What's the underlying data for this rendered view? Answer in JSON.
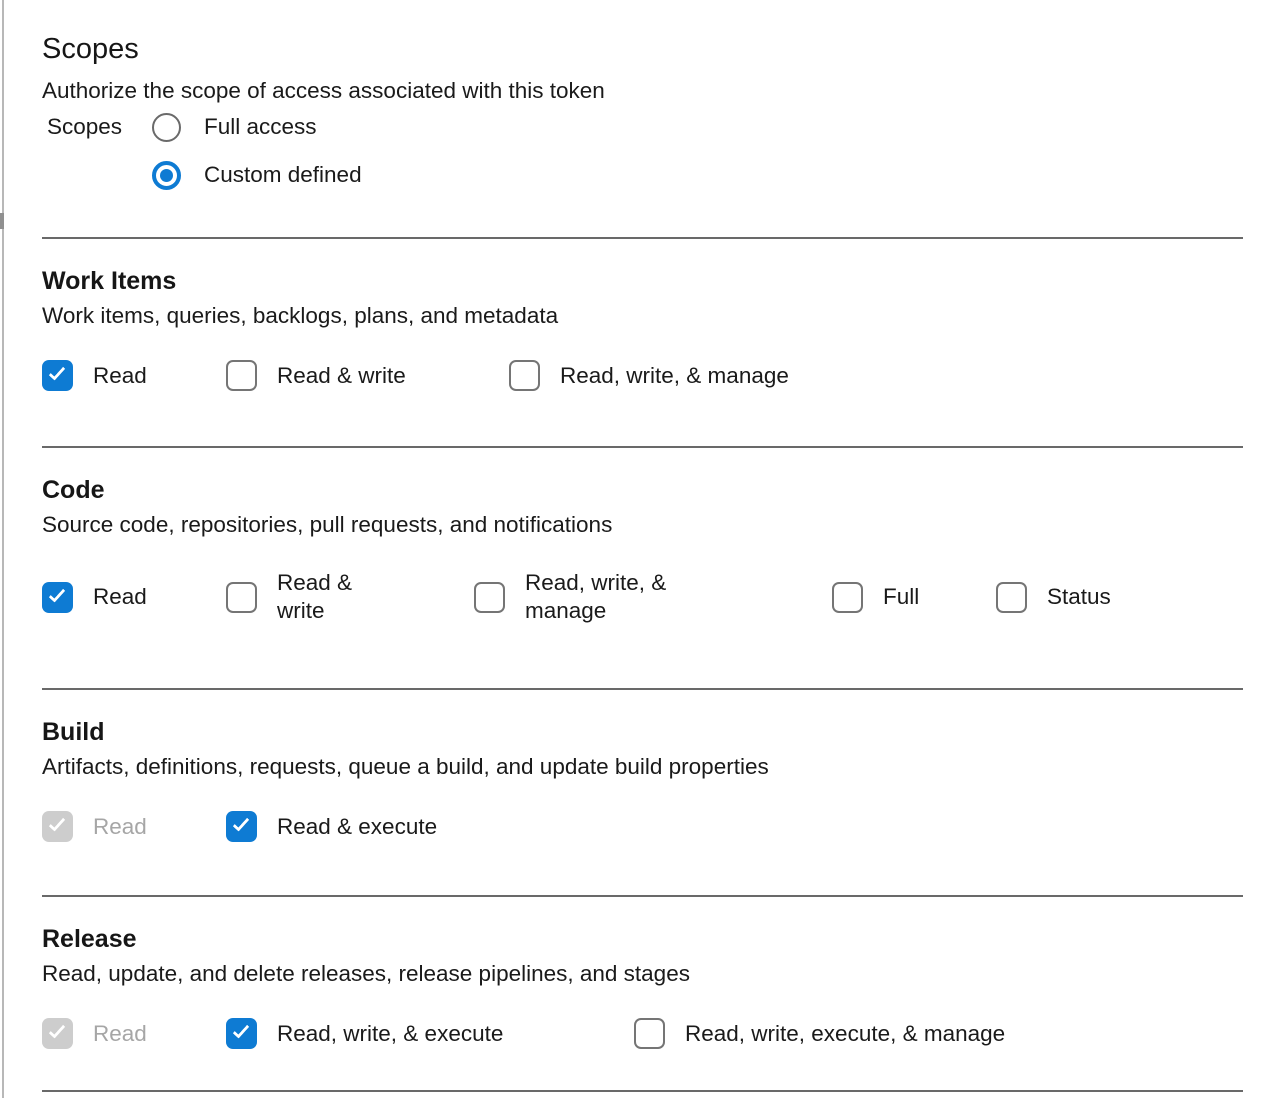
{
  "header": {
    "title": "Scopes",
    "subtitle": "Authorize the scope of access associated with this token",
    "field_label": "Scopes",
    "radios": [
      {
        "label": "Full access",
        "selected": false
      },
      {
        "label": "Custom defined",
        "selected": true
      }
    ]
  },
  "colors": {
    "accent": "#0e7bd3",
    "divider": "#696969",
    "disabled_fill": "#cdcdcd",
    "disabled_text": "#a6a6a6"
  },
  "icons": {
    "checkbox_check": "check-icon",
    "radio_dot": "radio-dot-icon"
  },
  "sections": [
    {
      "title": "Work Items",
      "description": "Work items, queries, backlogs, plans, and metadata",
      "options": [
        {
          "label": "Read",
          "state": "checked"
        },
        {
          "label": "Read & write",
          "state": "unchecked"
        },
        {
          "label": "Read, write, & manage",
          "state": "unchecked"
        }
      ]
    },
    {
      "title": "Code",
      "description": "Source code, repositories, pull requests, and notifications",
      "options": [
        {
          "label": "Read",
          "state": "checked"
        },
        {
          "label": "Read & write",
          "state": "unchecked"
        },
        {
          "label": "Read, write, & manage",
          "state": "unchecked"
        },
        {
          "label": "Full",
          "state": "unchecked"
        },
        {
          "label": "Status",
          "state": "unchecked"
        }
      ]
    },
    {
      "title": "Build",
      "description": "Artifacts, definitions, requests, queue a build, and update build properties",
      "options": [
        {
          "label": "Read",
          "state": "disabled-checked"
        },
        {
          "label": "Read & execute",
          "state": "checked"
        }
      ]
    },
    {
      "title": "Release",
      "description": "Read, update, and delete releases, release pipelines, and stages",
      "options": [
        {
          "label": "Read",
          "state": "disabled-checked"
        },
        {
          "label": "Read, write, & execute",
          "state": "checked"
        },
        {
          "label": "Read, write, execute, & manage",
          "state": "unchecked"
        }
      ]
    }
  ]
}
